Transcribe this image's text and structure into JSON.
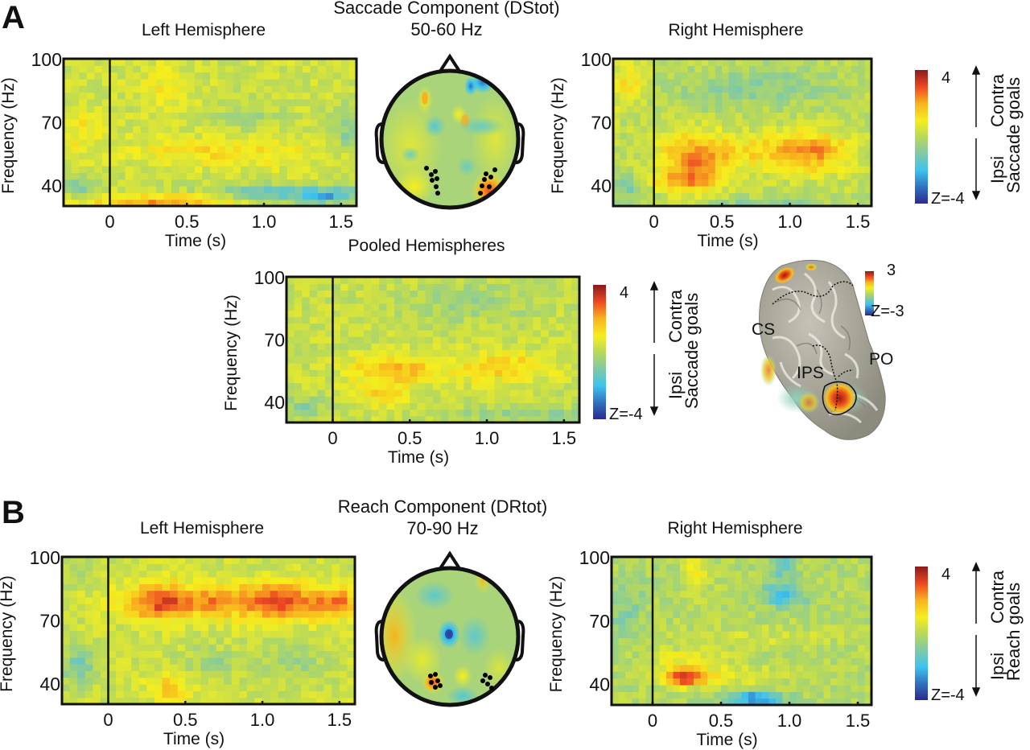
{
  "figure": {
    "panels": [
      {
        "letter": "A",
        "header": "Saccade Component (DStot)",
        "band": "50-60 Hz"
      },
      {
        "letter": "B",
        "header": "Reach Component (DRtot)",
        "band": "70-90 Hz"
      }
    ],
    "colormap": [
      "#2b2a8f",
      "#2f6fc0",
      "#3fc3ee",
      "#7ec9a8",
      "#b8d95a",
      "#f5ee1e",
      "#f8b21e",
      "#ef4a23",
      "#8b1a1a"
    ],
    "colorbars": [
      {
        "id": "cb-a",
        "max_label": "4",
        "min_label": "Z=-4",
        "range": [
          -4,
          4
        ],
        "up_label": "Contra",
        "down_label": "Ipsi",
        "title": "Saccade goals"
      },
      {
        "id": "cb-pooled",
        "max_label": "4",
        "min_label": "Z=-4",
        "range": [
          -4,
          4
        ],
        "up_label": "Contra",
        "down_label": "Ipsi",
        "title": "Saccade goals"
      },
      {
        "id": "cb-b",
        "max_label": "4",
        "min_label": "Z=-4",
        "range": [
          -4,
          4
        ],
        "up_label": "Contra",
        "down_label": "Reach goals",
        "title": "Reach goals"
      },
      {
        "id": "cb-brain",
        "max_label": "3",
        "min_label": "Z=-3",
        "range": [
          -3,
          3
        ]
      }
    ],
    "brain": {
      "labels": [
        "CS",
        "IPS",
        "PO"
      ]
    },
    "topomaps": [
      {
        "id": "topo-a",
        "electrode_groups": [
          "left-posterior",
          "right-posterior"
        ]
      },
      {
        "id": "topo-b",
        "electrode_groups": [
          "left-posterior",
          "right-posterior"
        ]
      }
    ]
  },
  "chart_data": [
    {
      "id": "a-left",
      "type": "heatmap",
      "title": "Left Hemisphere",
      "xlabel": "Time (s)",
      "ylabel": "Frequency (Hz)",
      "xlim": [
        -0.3,
        1.6
      ],
      "ylim": [
        30,
        100
      ],
      "xticks": [
        "0",
        "0.5",
        "1.0",
        "1.5"
      ],
      "xtick_values": [
        0,
        0.5,
        1.0,
        1.5
      ],
      "yticks": [
        "100",
        "70",
        "40"
      ],
      "ytick_values": [
        100,
        70,
        40
      ],
      "zlim": [
        -4,
        4
      ],
      "event_line_x": 0,
      "base": 0.3,
      "blobs": [
        {
          "t": 0.75,
          "f": 56,
          "st": 0.45,
          "sf": 5,
          "z": 1.0
        },
        {
          "t": 0.35,
          "f": 86,
          "st": 0.12,
          "sf": 8,
          "z": 0.8
        },
        {
          "t": -0.18,
          "f": 66,
          "st": 0.08,
          "sf": 8,
          "z": 0.8
        },
        {
          "t": 0.35,
          "f": 32,
          "st": 0.35,
          "sf": 2.5,
          "z": 2.0
        },
        {
          "t": 1.2,
          "f": 36,
          "st": 0.4,
          "sf": 3,
          "z": -1.8
        },
        {
          "t": 1.4,
          "f": 34,
          "st": 0.1,
          "sf": 2,
          "z": -1.2
        },
        {
          "t": -0.2,
          "f": 40,
          "st": 0.1,
          "sf": 4,
          "z": -1.2
        },
        {
          "t": 1.55,
          "f": 68,
          "st": 0.06,
          "sf": 8,
          "z": -1.2
        },
        {
          "t": 0.9,
          "f": 72,
          "st": 0.15,
          "sf": 5,
          "z": -0.6
        }
      ]
    },
    {
      "id": "a-right",
      "type": "heatmap",
      "title": "Right Hemisphere",
      "xlabel": "Time (s)",
      "ylabel": "Frequency (Hz)",
      "xlim": [
        -0.3,
        1.6
      ],
      "ylim": [
        30,
        100
      ],
      "xticks": [
        "0",
        "0.5",
        "1.0",
        "1.5"
      ],
      "xtick_values": [
        0,
        0.5,
        1.0,
        1.5
      ],
      "yticks": [
        "100",
        "70",
        "40"
      ],
      "ytick_values": [
        100,
        70,
        40
      ],
      "zlim": [
        -4,
        4
      ],
      "event_line_x": 0,
      "base": 0.1,
      "blobs": [
        {
          "t": 0.3,
          "f": 52,
          "st": 0.18,
          "sf": 9,
          "z": 2.4
        },
        {
          "t": 0.22,
          "f": 42,
          "st": 0.14,
          "sf": 3,
          "z": 1.4
        },
        {
          "t": 1.15,
          "f": 56,
          "st": 0.2,
          "sf": 7,
          "z": 2.2
        },
        {
          "t": 0.75,
          "f": 56,
          "st": 0.2,
          "sf": 6,
          "z": 0.9
        },
        {
          "t": -0.2,
          "f": 88,
          "st": 0.08,
          "sf": 8,
          "z": 1.2
        },
        {
          "t": 0.5,
          "f": 85,
          "st": 0.3,
          "sf": 8,
          "z": -0.5
        },
        {
          "t": 1.0,
          "f": 88,
          "st": 0.3,
          "sf": 7,
          "z": -0.6
        },
        {
          "t": -0.2,
          "f": 38,
          "st": 0.1,
          "sf": 5,
          "z": -1.0
        },
        {
          "t": 0.8,
          "f": 31,
          "st": 0.3,
          "sf": 2,
          "z": -1.0
        }
      ]
    },
    {
      "id": "a-pooled",
      "type": "heatmap",
      "title": "Pooled Hemispheres",
      "xlabel": "Time (s)",
      "ylabel": "Frequency (Hz)",
      "xlim": [
        -0.3,
        1.6
      ],
      "ylim": [
        30,
        100
      ],
      "xticks": [
        "0",
        "0.5",
        "1.0",
        "1.5"
      ],
      "xtick_values": [
        0,
        0.5,
        1.0,
        1.5
      ],
      "yticks": [
        "100",
        "70",
        "40"
      ],
      "ytick_values": [
        100,
        70,
        40
      ],
      "zlim": [
        -4,
        4
      ],
      "event_line_x": 0,
      "base": 0.25,
      "blobs": [
        {
          "t": 0.4,
          "f": 56,
          "st": 0.2,
          "sf": 5,
          "z": 1.6
        },
        {
          "t": 1.1,
          "f": 57,
          "st": 0.22,
          "sf": 5,
          "z": 1.4
        },
        {
          "t": 0.3,
          "f": 44,
          "st": 0.14,
          "sf": 5,
          "z": 1.0
        },
        {
          "t": 0.9,
          "f": 88,
          "st": 0.3,
          "sf": 7,
          "z": -0.7
        },
        {
          "t": -0.2,
          "f": 37,
          "st": 0.1,
          "sf": 4,
          "z": -1.0
        },
        {
          "t": 1.3,
          "f": 34,
          "st": 0.4,
          "sf": 3,
          "z": -0.9
        }
      ]
    },
    {
      "id": "b-left",
      "type": "heatmap",
      "title": "Left Hemisphere",
      "xlabel": "Time (s)",
      "ylabel": "Frequency (Hz)",
      "xlim": [
        -0.3,
        1.6
      ],
      "ylim": [
        30,
        100
      ],
      "xticks": [
        "0",
        "0.5",
        "1.0",
        "1.5"
      ],
      "xtick_values": [
        0,
        0.5,
        1.0,
        1.5
      ],
      "yticks": [
        "100",
        "70",
        "40"
      ],
      "ytick_values": [
        100,
        70,
        40
      ],
      "zlim": [
        -4,
        4
      ],
      "event_line_x": 0,
      "base": 0.3,
      "blobs": [
        {
          "t": 0.35,
          "f": 79,
          "st": 0.18,
          "sf": 6,
          "z": 2.9
        },
        {
          "t": 1.1,
          "f": 79,
          "st": 0.22,
          "sf": 6,
          "z": 2.9
        },
        {
          "t": 0.7,
          "f": 79,
          "st": 0.1,
          "sf": 5,
          "z": 1.3
        },
        {
          "t": 1.5,
          "f": 78,
          "st": 0.1,
          "sf": 5,
          "z": 1.8
        },
        {
          "t": 0.4,
          "f": 38,
          "st": 0.1,
          "sf": 5,
          "z": 1.3
        },
        {
          "t": -0.2,
          "f": 48,
          "st": 0.08,
          "sf": 6,
          "z": -1.4
        },
        {
          "t": 0.7,
          "f": 50,
          "st": 0.15,
          "sf": 5,
          "z": -0.7
        },
        {
          "t": 1.2,
          "f": 50,
          "st": 0.15,
          "sf": 5,
          "z": -0.7
        },
        {
          "t": -0.2,
          "f": 94,
          "st": 0.1,
          "sf": 4,
          "z": -0.6
        }
      ]
    },
    {
      "id": "b-right",
      "type": "heatmap",
      "title": "Right Hemisphere",
      "xlabel": "Time (s)",
      "ylabel": "Frequency (Hz)",
      "xlim": [
        -0.3,
        1.6
      ],
      "ylim": [
        30,
        100
      ],
      "xticks": [
        "0",
        "0.5",
        "1.0",
        "1.5"
      ],
      "xtick_values": [
        0,
        0.5,
        1.0,
        1.5
      ],
      "yticks": [
        "100",
        "70",
        "40"
      ],
      "ytick_values": [
        100,
        70,
        40
      ],
      "zlim": [
        -4,
        4
      ],
      "event_line_x": 0,
      "base": -0.1,
      "blobs": [
        {
          "t": 0.22,
          "f": 43,
          "st": 0.12,
          "sf": 3,
          "z": 2.9
        },
        {
          "t": 0.55,
          "f": 44,
          "st": 0.3,
          "sf": 3,
          "z": 1.0
        },
        {
          "t": 0.25,
          "f": 52,
          "st": 0.2,
          "sf": 3,
          "z": 1.0
        },
        {
          "t": 0.32,
          "f": 92,
          "st": 0.06,
          "sf": 7,
          "z": 1.2
        },
        {
          "t": 0.75,
          "f": 33,
          "st": 0.15,
          "sf": 2,
          "z": -3.0
        },
        {
          "t": 0.95,
          "f": 82,
          "st": 0.12,
          "sf": 4,
          "z": -1.6
        },
        {
          "t": 0.95,
          "f": 96,
          "st": 0.06,
          "sf": 4,
          "z": -1.3
        },
        {
          "t": -0.2,
          "f": 75,
          "st": 0.1,
          "sf": 10,
          "z": -0.7
        },
        {
          "t": 0.7,
          "f": 62,
          "st": 0.5,
          "sf": 4,
          "z": 0.5
        }
      ]
    }
  ]
}
